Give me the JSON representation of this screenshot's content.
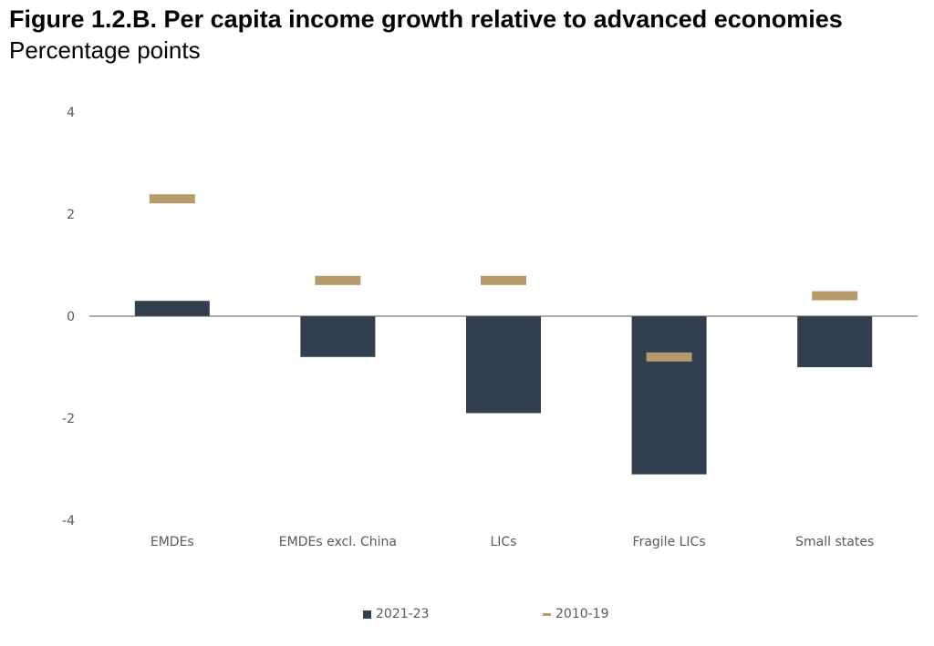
{
  "title": "Figure 1.2.B. Per capita income growth relative to advanced economies",
  "subtitle": "Percentage points",
  "colors": {
    "bar": "#323f4f",
    "marker": "#b59a6a",
    "axis": "#595959"
  },
  "chart_data": {
    "type": "bar",
    "categories": [
      "EMDEs",
      "EMDEs excl. China",
      "LICs",
      "Fragile LICs",
      "Small states"
    ],
    "series": [
      {
        "name": "2021-23",
        "mark": "bar",
        "values": [
          0.3,
          -0.8,
          -1.9,
          -3.1,
          -1.0
        ]
      },
      {
        "name": "2010-19",
        "mark": "dash",
        "values": [
          2.3,
          0.7,
          0.7,
          -0.8,
          0.4
        ]
      }
    ],
    "yticks": [
      4,
      2,
      0,
      -2,
      -4
    ],
    "ytick_labels": [
      "4",
      "2",
      "0",
      "-2",
      "-4"
    ],
    "ylim": [
      -4,
      4
    ],
    "xlabel": "",
    "ylabel": "",
    "grid": false,
    "legend_position": "bottom"
  }
}
